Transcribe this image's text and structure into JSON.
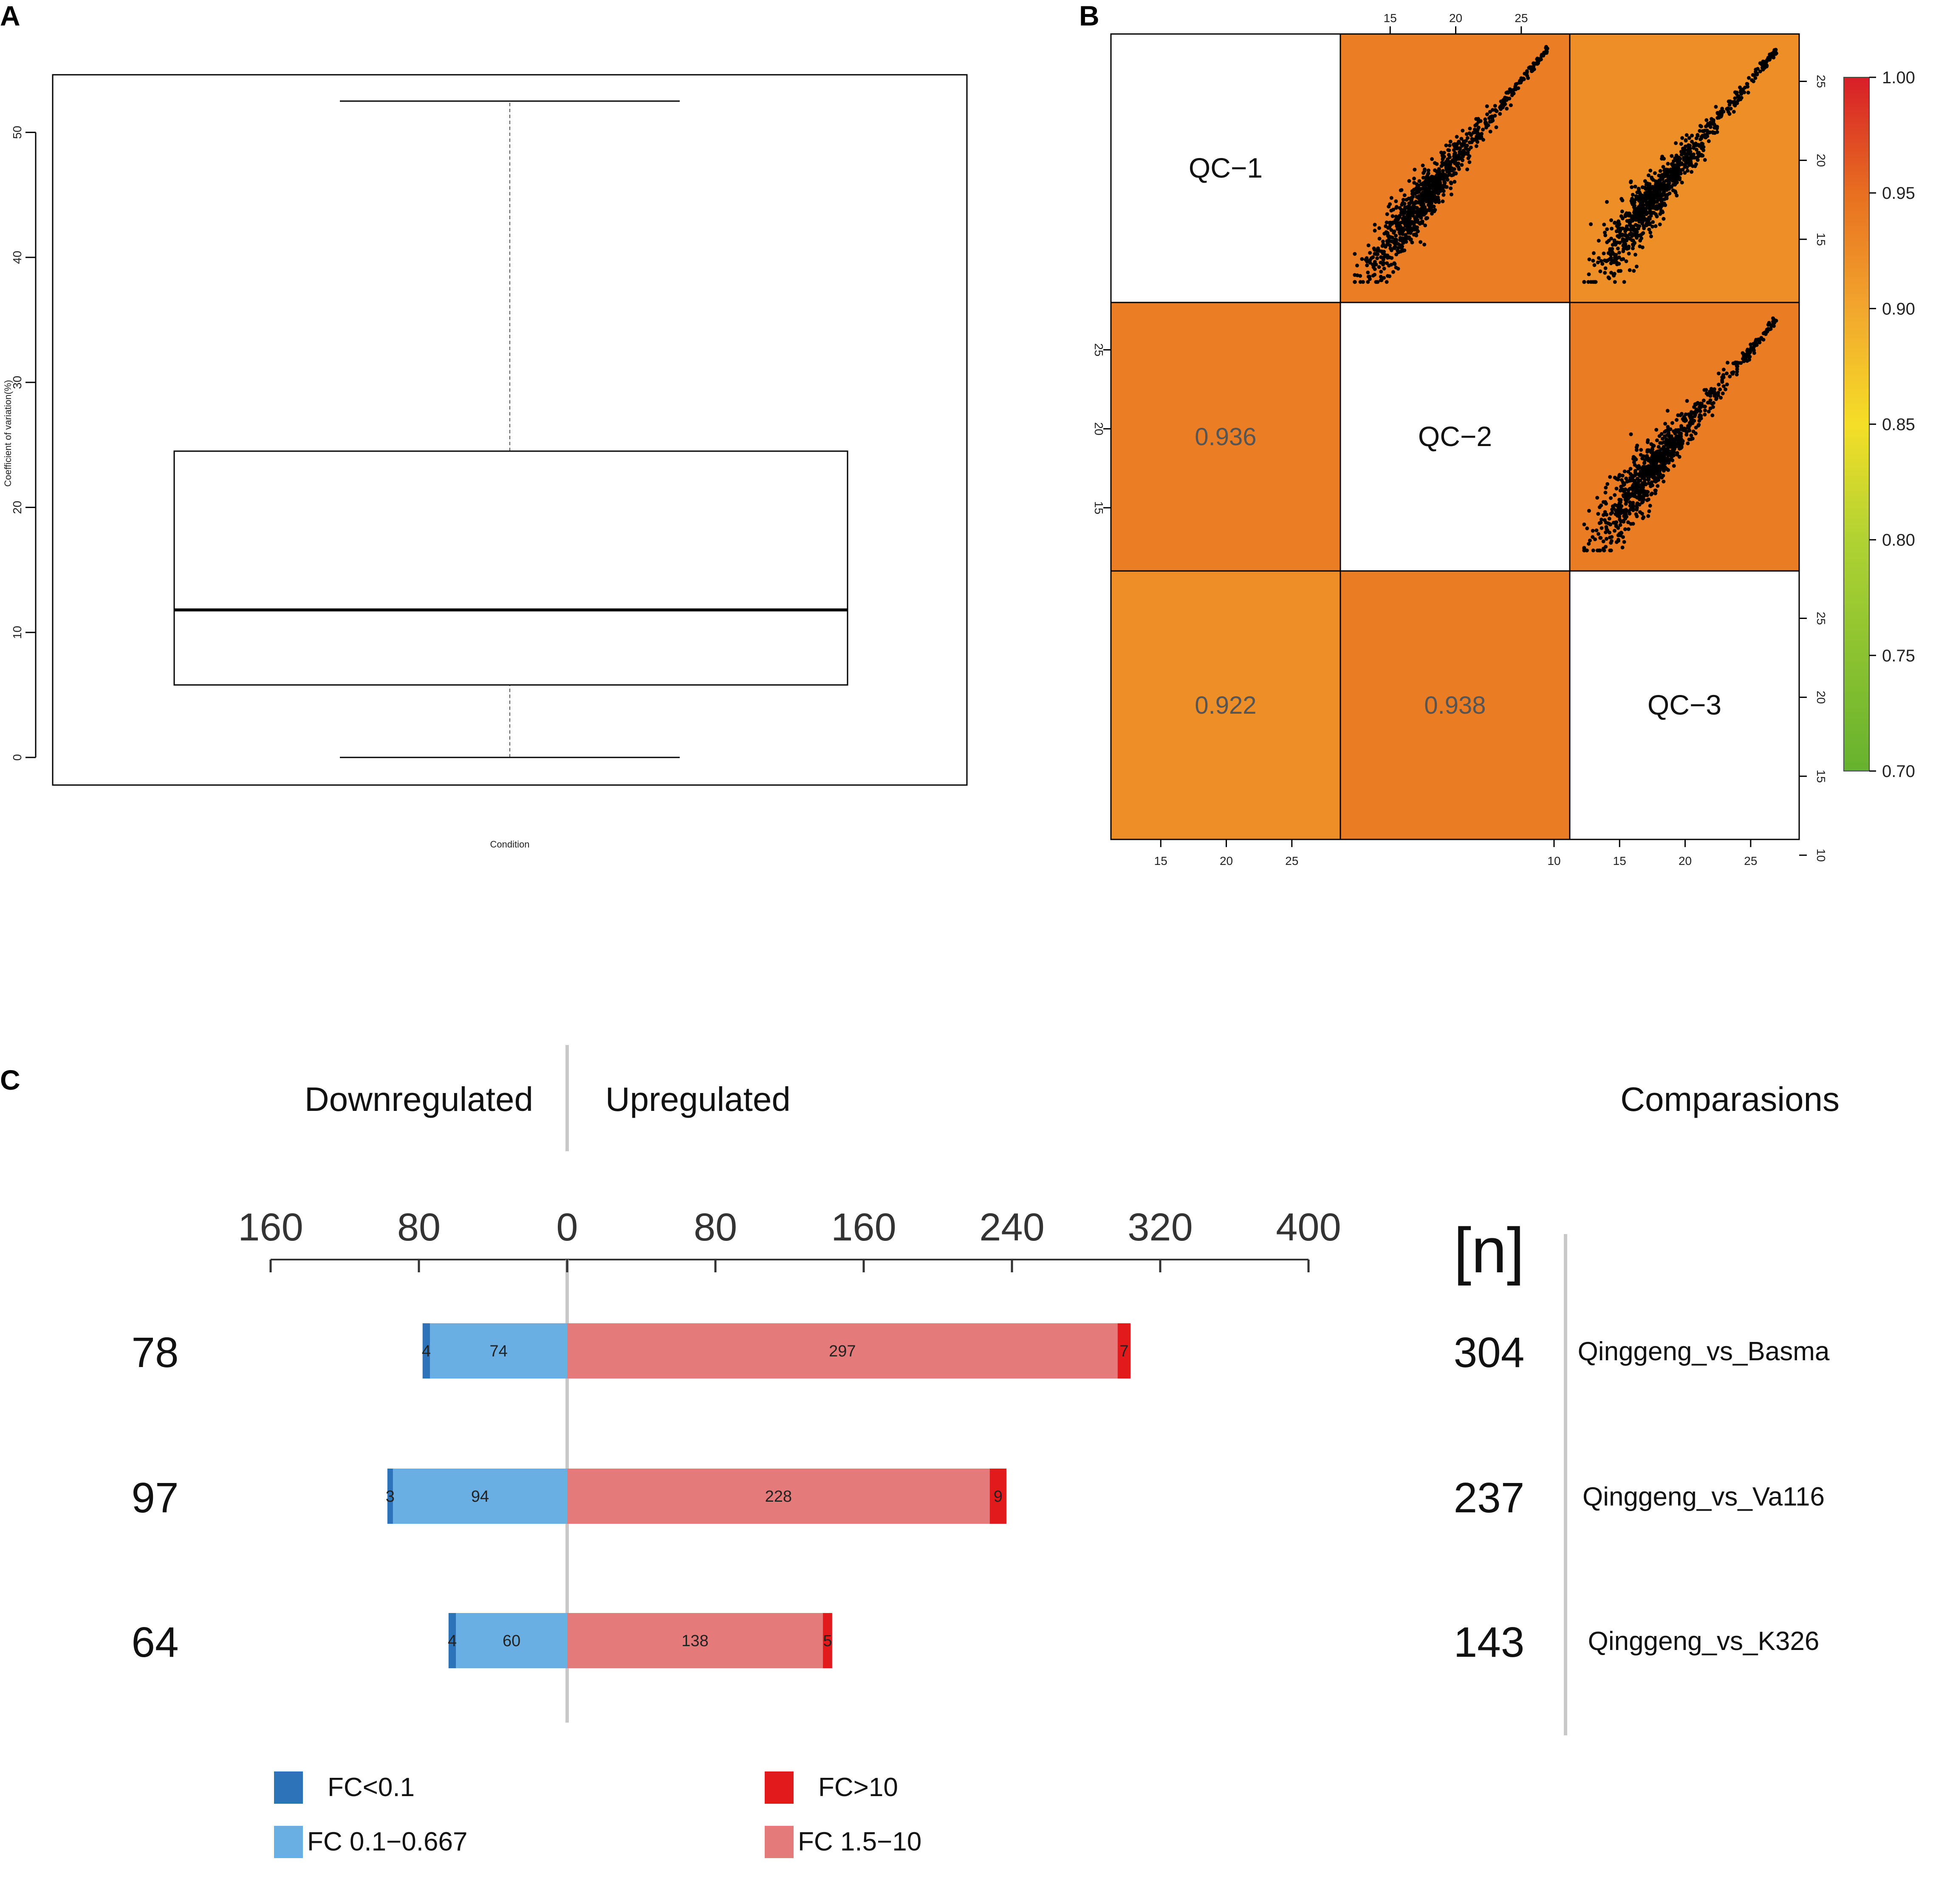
{
  "figure": {
    "panel_labels": [
      "A",
      "B",
      "C"
    ]
  },
  "chart_data": [
    {
      "panel": "A",
      "type": "box",
      "title": "",
      "xlabel": "Condition",
      "ylabel": "Coefficient of variation(%)",
      "yticks": [
        0,
        10,
        20,
        30,
        40,
        50
      ],
      "ylim": [
        -2,
        55
      ],
      "box": {
        "whisker_low": 0,
        "q1": 5.8,
        "median": 11.8,
        "q3": 24.5,
        "whisker_high": 52.5
      }
    },
    {
      "panel": "B",
      "type": "scatter-matrix",
      "samples": [
        "QC−1",
        "QC−2",
        "QC−3"
      ],
      "correlations": [
        {
          "row": 1,
          "col": 0,
          "r": 0.936,
          "label": "0.936"
        },
        {
          "row": 2,
          "col": 0,
          "r": 0.922,
          "label": "0.922"
        },
        {
          "row": 2,
          "col": 1,
          "r": 0.938,
          "label": "0.938"
        }
      ],
      "scatter_axis_ticks": {
        "top": [
          "15",
          "20",
          "25"
        ],
        "bottom_left": [
          "15",
          "20",
          "25"
        ],
        "bottom_right": [
          "10",
          "15",
          "20",
          "25"
        ],
        "left": [
          "15",
          "20",
          "25"
        ],
        "right_top": [
          "15",
          "20",
          "25"
        ],
        "right_bottom": [
          "10",
          "15",
          "20",
          "25"
        ]
      },
      "colorbar": {
        "min": 0.7,
        "max": 1.0,
        "ticks": [
          "0.70",
          "0.75",
          "0.80",
          "0.85",
          "0.90",
          "0.95",
          "1.00"
        ]
      }
    },
    {
      "panel": "C",
      "type": "bar",
      "orientation": "horizontal-diverging",
      "header_left": "Downregulated",
      "header_right": "Upregulated",
      "header_comparisons": "Comparasions",
      "n_label": "[n]",
      "axis_ticks": [
        {
          "value": -160,
          "label": "160"
        },
        {
          "value": -80,
          "label": "80"
        },
        {
          "value": 0,
          "label": "0"
        },
        {
          "value": 80,
          "label": "80"
        },
        {
          "value": 160,
          "label": "160"
        },
        {
          "value": 240,
          "label": "240"
        },
        {
          "value": 320,
          "label": "320"
        },
        {
          "value": 400,
          "label": "400"
        }
      ],
      "xlim": [
        -160,
        400
      ],
      "rows": [
        {
          "comparison": "Qinggeng_vs_Basma",
          "down_total": "78",
          "up_total": "304",
          "down_fc_lt_0_1": 4,
          "down_fc_0_1_0_667": 74,
          "up_fc_1_5_10": 297,
          "up_fc_gt_10": 7
        },
        {
          "comparison": "Qinggeng_vs_Va116",
          "down_total": "97",
          "up_total": "237",
          "down_fc_lt_0_1": 3,
          "down_fc_0_1_0_667": 94,
          "up_fc_1_5_10": 228,
          "up_fc_gt_10": 9
        },
        {
          "comparison": "Qinggeng_vs_K326",
          "down_total": "64",
          "up_total": "143",
          "down_fc_lt_0_1": 4,
          "down_fc_0_1_0_667": 60,
          "up_fc_1_5_10": 138,
          "up_fc_gt_10": 5
        }
      ],
      "legend": [
        {
          "key": "down_fc_lt_0_1",
          "label": "FC<0.1",
          "color": "#2d73b9"
        },
        {
          "key": "up_fc_gt_10",
          "label": "FC>10",
          "color": "#e31a1c"
        },
        {
          "key": "down_fc_0_1_0_667",
          "label": "FC 0.1−0.667",
          "color": "#6aafe3"
        },
        {
          "key": "up_fc_1_5_10",
          "label": "FC 1.5−10",
          "color": "#e57a7a"
        }
      ]
    }
  ]
}
